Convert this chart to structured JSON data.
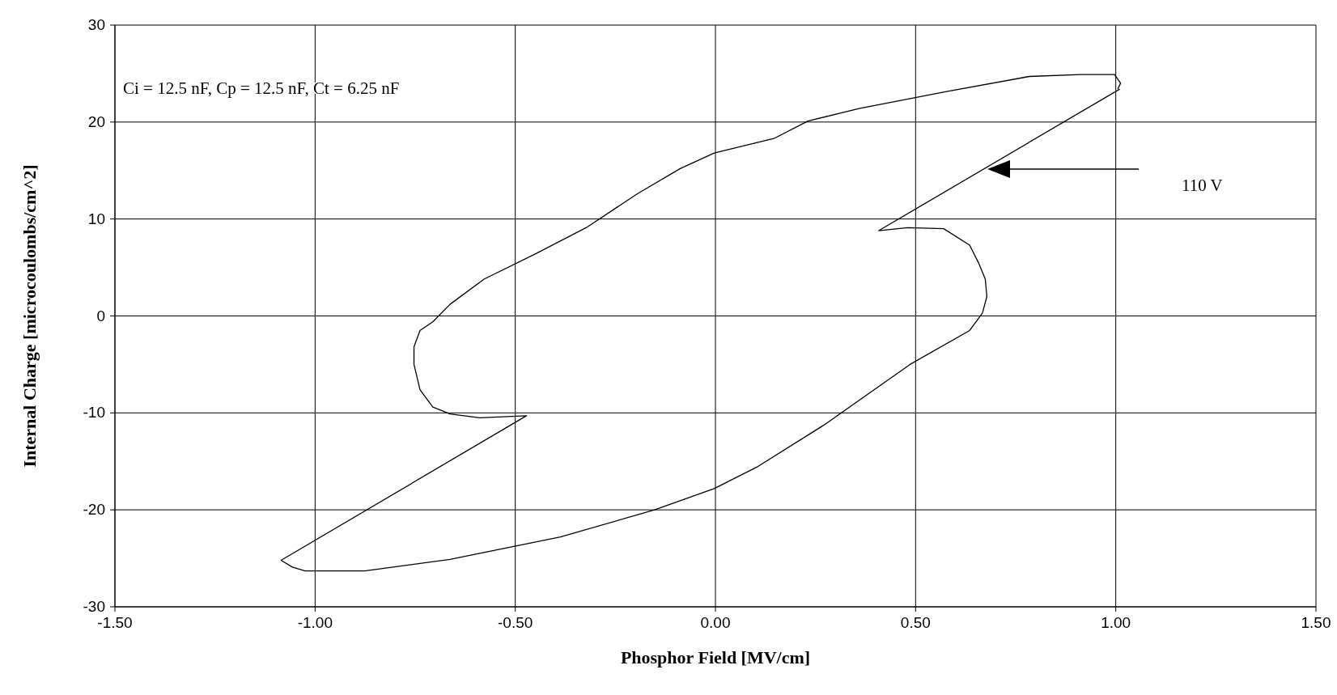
{
  "chart_data": {
    "type": "line",
    "xlabel": "Phosphor Field [MV/cm]",
    "ylabel": "Internal Charge [microcoulombs/cm^2]",
    "xlim": [
      -1.5,
      1.5
    ],
    "xticks": [
      {
        "value": -1.5,
        "label": "-1.50"
      },
      {
        "value": -1,
        "label": "-1.00"
      },
      {
        "value": -0.5,
        "label": "-0.50"
      },
      {
        "value": 0,
        "label": "0.00"
      },
      {
        "value": 0.5,
        "label": "0.50"
      },
      {
        "value": 1,
        "label": "1.00"
      },
      {
        "value": 1.5,
        "label": "1.50"
      }
    ],
    "ylim": [
      -30,
      30
    ],
    "yticks": [
      -30,
      -20,
      -10,
      0,
      10,
      20,
      30
    ],
    "grid": true,
    "marker": "none",
    "line_style": "solid",
    "annotations": [
      "Ci = 12.5 nF, Cp = 12.5 nF, Ct = 6.25 nF",
      "110 V"
    ],
    "series": [
      {
        "color": "#000000",
        "x": [
          1.01,
          0.408,
          0.48,
          0.57,
          0.635,
          0.657,
          0.674,
          0.678,
          0.667,
          0.635,
          0.486,
          0.273,
          0.103,
          -0.003,
          -0.152,
          -0.387,
          -0.663,
          -0.876,
          -1.025,
          -1.057,
          -1.085,
          -0.472,
          -0.589,
          -0.663,
          -0.706,
          -0.738,
          -0.753,
          -0.753,
          -0.738,
          -0.706,
          -0.663,
          -0.578,
          -0.45,
          -0.323,
          -0.195,
          -0.088,
          -0.003,
          0.146,
          0.231,
          0.359,
          0.572,
          0.784,
          0.912,
          0.997,
          1.012,
          1.005
        ],
        "values": [
          23.4,
          8.8,
          9.1,
          9.0,
          7.3,
          5.5,
          3.8,
          2.0,
          0.3,
          -1.5,
          -5.0,
          -11.2,
          -15.6,
          -17.8,
          -20,
          -22.8,
          -25.1,
          -26.3,
          -26.3,
          -25.9,
          -25.2,
          -10.3,
          -10.5,
          -10.1,
          -9.4,
          -7.6,
          -5.0,
          -3.2,
          -1.5,
          -0.6,
          1.2,
          3.8,
          6.4,
          9.1,
          12.6,
          15.2,
          16.8,
          18.3,
          20.1,
          21.4,
          23.1,
          24.7,
          24.9,
          24.9,
          24.0,
          23.4
        ]
      }
    ]
  }
}
